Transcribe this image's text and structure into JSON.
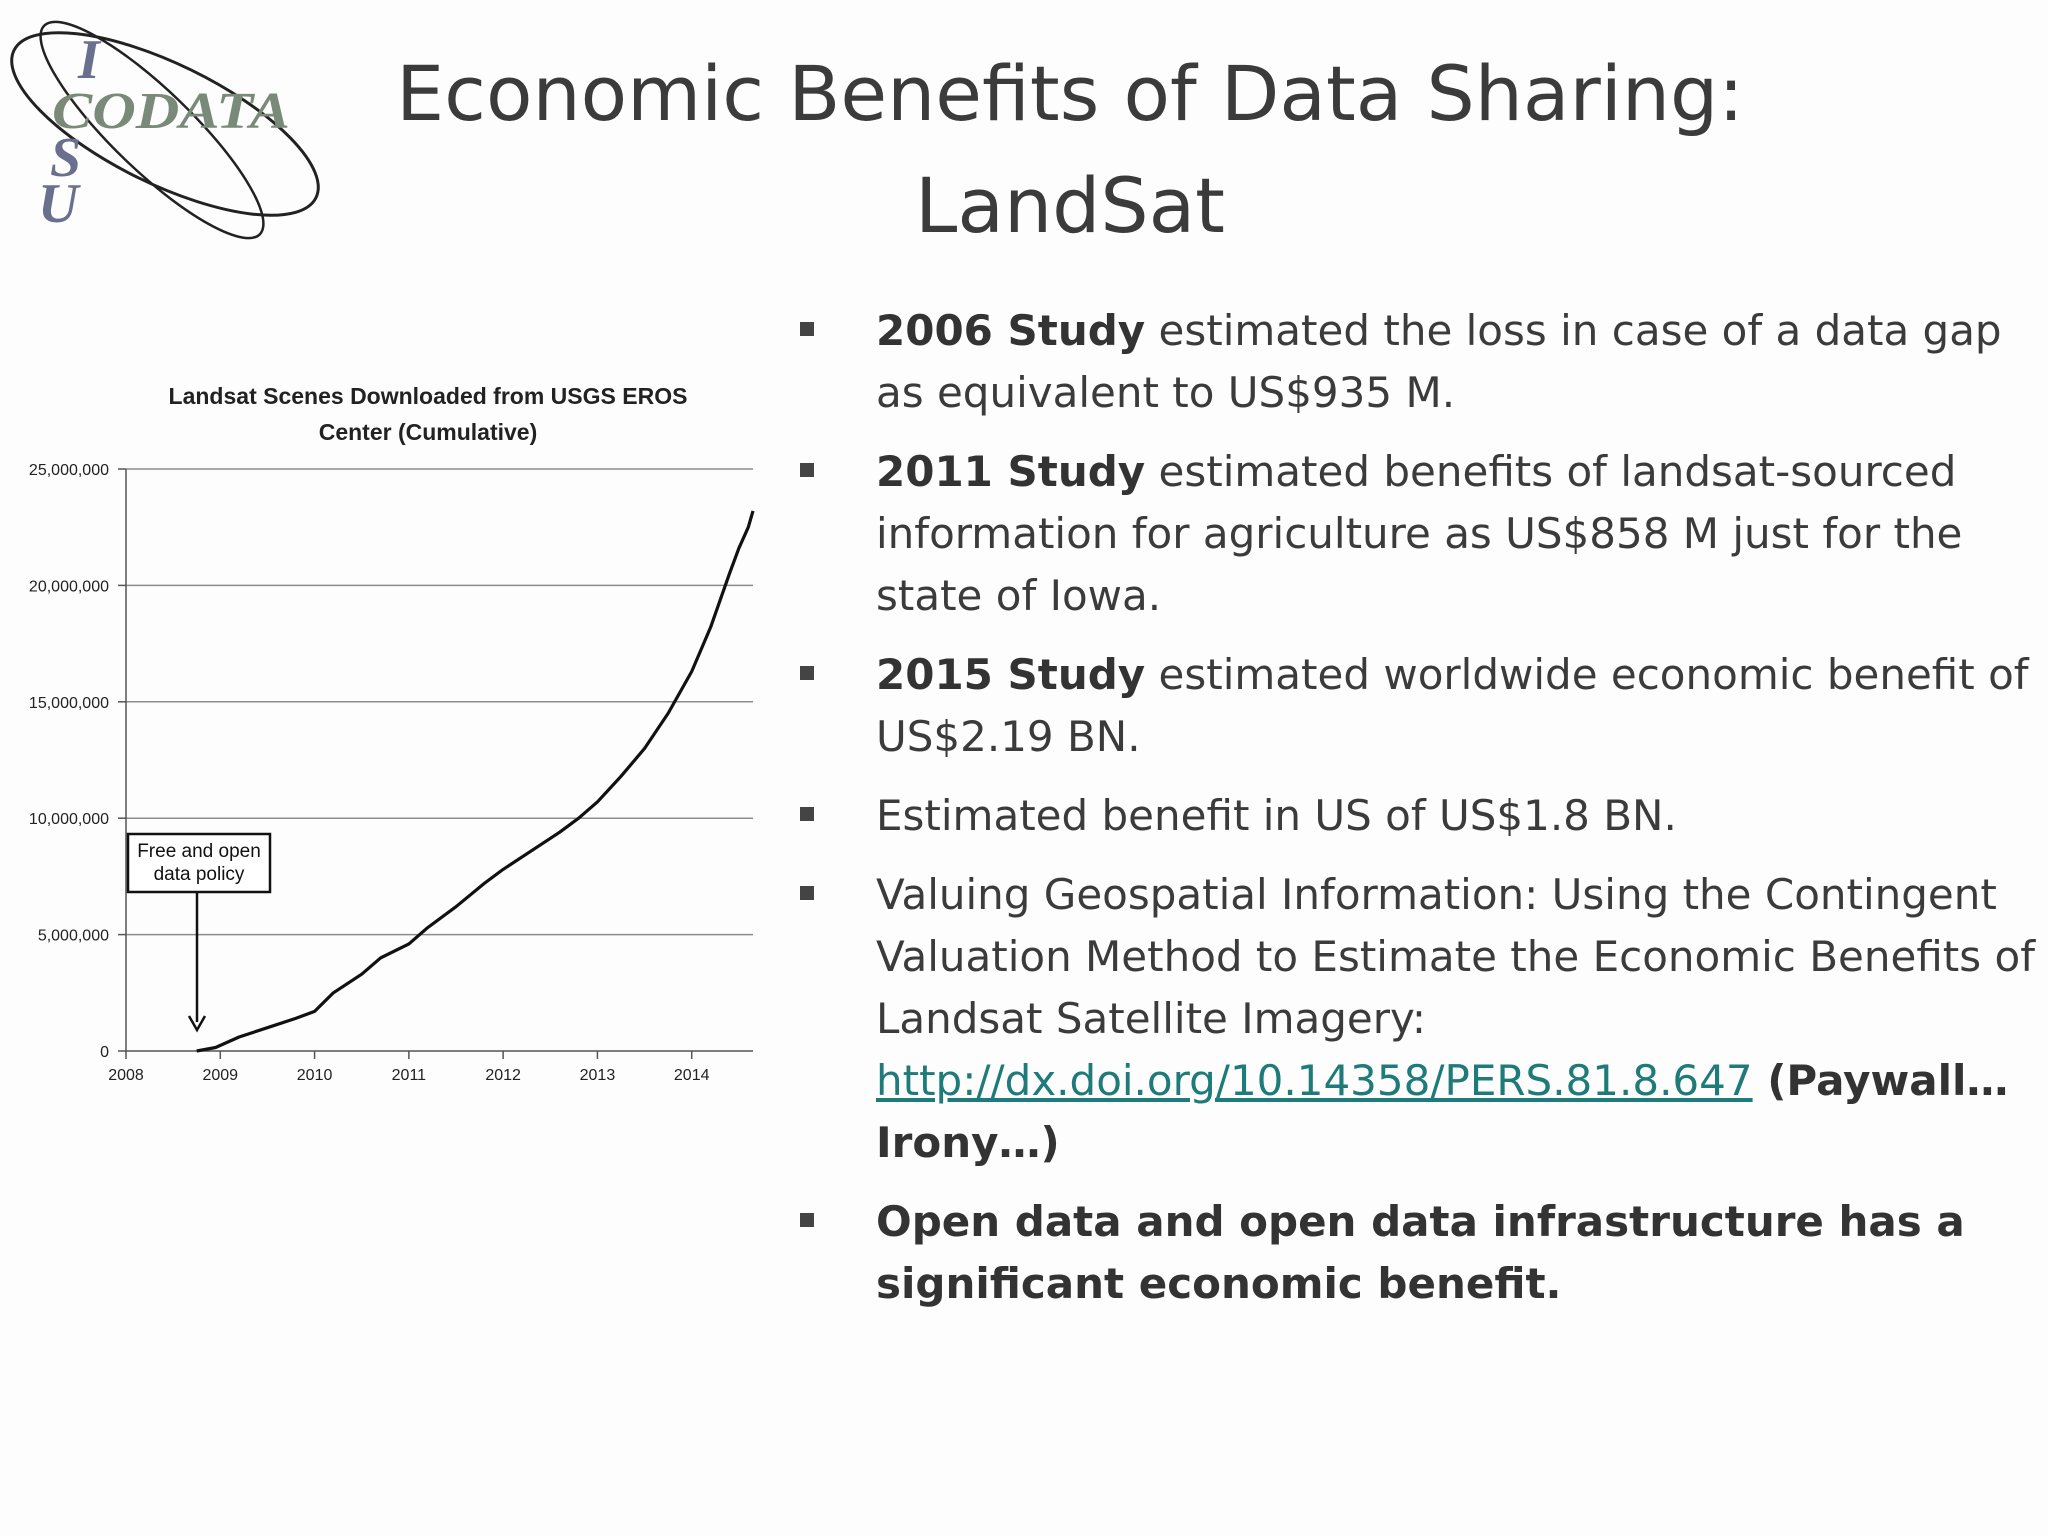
{
  "title": {
    "line1": "Economic Benefits of Data Sharing:",
    "line2": "LandSat"
  },
  "logo": {
    "letters": [
      "I",
      "CODATA",
      "S",
      "U"
    ],
    "icon": "codata-isu-logo"
  },
  "bullets": [
    {
      "bold": "2006 Study",
      "text": " estimated the loss in case of a data gap as equivalent to US$935 M."
    },
    {
      "bold": "2011 Study",
      "text": " estimated benefits of landsat-sourced information for agriculture as US$858 M just for the state of Iowa."
    },
    {
      "bold": "2015 Study",
      "text": " estimated worldwide economic benefit of US$2.19 BN."
    },
    {
      "text": "Estimated benefit in US of US$1.8 BN."
    },
    {
      "text": "Valuing Geospatial Information: Using the Contingent Valuation Method to Estimate the Economic Benefits of Landsat Satellite Imagery: ",
      "link": "http://dx.doi.org/10.14358/PERS.81.8.647",
      "bold_after": " (Paywall… Irony…)"
    },
    {
      "bold": "Open data and open data infrastructure has a significant economic benefit."
    }
  ],
  "colors": {
    "link": "#1f7a7a",
    "text": "#3b3b3b",
    "line": "#111111",
    "grid": "#8c8c8c"
  },
  "chart_data": {
    "type": "line",
    "title": "Landsat Scenes Downloaded from USGS EROS Center  (Cumulative)",
    "title_lines": [
      "Landsat Scenes Downloaded from USGS EROS",
      "Center  (Cumulative)"
    ],
    "xlabel": "",
    "ylabel": "",
    "xlim": [
      2008,
      2014.65
    ],
    "ylim": [
      0,
      25000000
    ],
    "x_ticks": [
      2008,
      2009,
      2010,
      2011,
      2012,
      2013,
      2014
    ],
    "x_tick_labels": [
      "2008",
      "2009",
      "2010",
      "2011",
      "2012",
      "2013",
      "2014"
    ],
    "y_ticks": [
      0,
      5000000,
      10000000,
      15000000,
      20000000,
      25000000
    ],
    "y_tick_labels": [
      "0",
      "5,000,000",
      "10,000,000",
      "15,000,000",
      "20,000,000",
      "25,000,000"
    ],
    "grid": true,
    "series": [
      {
        "x": [
          2008.75,
          2008.95,
          2009.2,
          2009.5,
          2009.8,
          2010.0,
          2010.2,
          2010.5,
          2010.7,
          2011.0,
          2011.2,
          2011.5,
          2011.8,
          2012.0,
          2012.3,
          2012.6,
          2012.8,
          2013.0,
          2013.25,
          2013.5,
          2013.75,
          2014.0,
          2014.2,
          2014.4,
          2014.5,
          2014.6,
          2014.65
        ],
        "y": [
          0,
          150000,
          600000,
          1000000,
          1400000,
          1700000,
          2500000,
          3300000,
          4000000,
          4600000,
          5300000,
          6200000,
          7200000,
          7800000,
          8600000,
          9400000,
          10000000,
          10700000,
          11800000,
          13000000,
          14500000,
          16300000,
          18200000,
          20500000,
          21600000,
          22500000,
          23200000
        ]
      }
    ],
    "annotation": {
      "text_lines": [
        "Free and open",
        "data policy"
      ],
      "x": 2008.77,
      "y": 0
    }
  }
}
